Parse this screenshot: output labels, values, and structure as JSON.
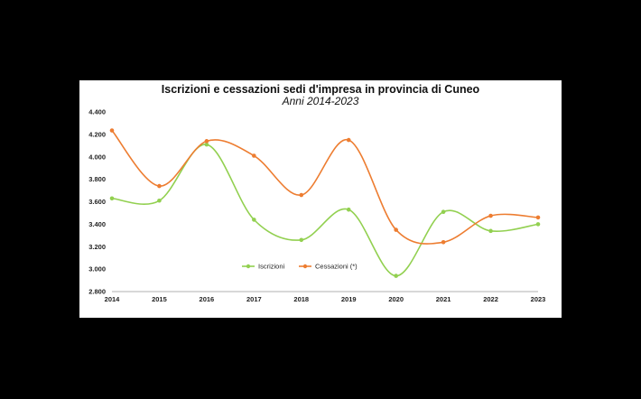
{
  "chart_data": {
    "type": "line",
    "title": "Iscrizioni e cessazioni sedi d'impresa in provincia di Cuneo",
    "subtitle": "Anni 2014-2023",
    "xlabel": "",
    "ylabel": "",
    "categories": [
      "2014",
      "2015",
      "2016",
      "2017",
      "2018",
      "2019",
      "2020",
      "2021",
      "2022",
      "2023"
    ],
    "y_ticks": [
      "2.800",
      "3.000",
      "3.200",
      "3.400",
      "3.600",
      "3.800",
      "4.000",
      "4.200",
      "4.400"
    ],
    "ylim": [
      2800,
      4400
    ],
    "grid": false,
    "legend_position": "bottom-center",
    "smooth": true,
    "series": [
      {
        "name": "Iscrizioni",
        "color": "#92d050",
        "values": [
          3630,
          3610,
          4110,
          3440,
          3260,
          3530,
          2940,
          3510,
          3340,
          3400
        ]
      },
      {
        "name": "Cessazioni (*)",
        "color": "#ed7d31",
        "values": [
          4235,
          3740,
          4140,
          4010,
          3660,
          4150,
          3350,
          3240,
          3475,
          3460
        ]
      }
    ]
  }
}
